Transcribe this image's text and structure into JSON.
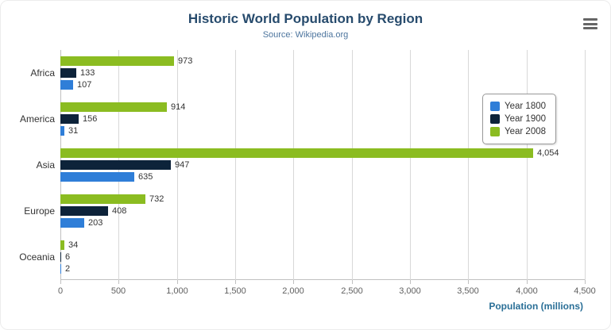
{
  "title": "Historic World Population by Region",
  "subtitle": "Source: Wikipedia.org",
  "menu": {
    "icon": "hamburger-icon"
  },
  "chart_data": {
    "type": "bar",
    "orientation": "horizontal",
    "categories": [
      "Africa",
      "America",
      "Asia",
      "Europe",
      "Oceania"
    ],
    "series": [
      {
        "name": "Year 1800",
        "color": "#2f7ed8",
        "values": [
          107,
          31,
          635,
          203,
          2
        ]
      },
      {
        "name": "Year 1900",
        "color": "#0d233a",
        "values": [
          133,
          156,
          947,
          408,
          6
        ]
      },
      {
        "name": "Year 2008",
        "color": "#8bbc21",
        "values": [
          973,
          914,
          4054,
          732,
          34
        ]
      }
    ],
    "display_order_top_to_bottom": [
      "Year 2008",
      "Year 1900",
      "Year 1800"
    ],
    "xlabel": "Population (millions)",
    "ylabel": "",
    "xlim": [
      0,
      4500
    ],
    "xticks": [
      0,
      500,
      1000,
      1500,
      2000,
      2500,
      3000,
      3500,
      4000,
      4500
    ],
    "grid": true,
    "legend_position": "right"
  }
}
